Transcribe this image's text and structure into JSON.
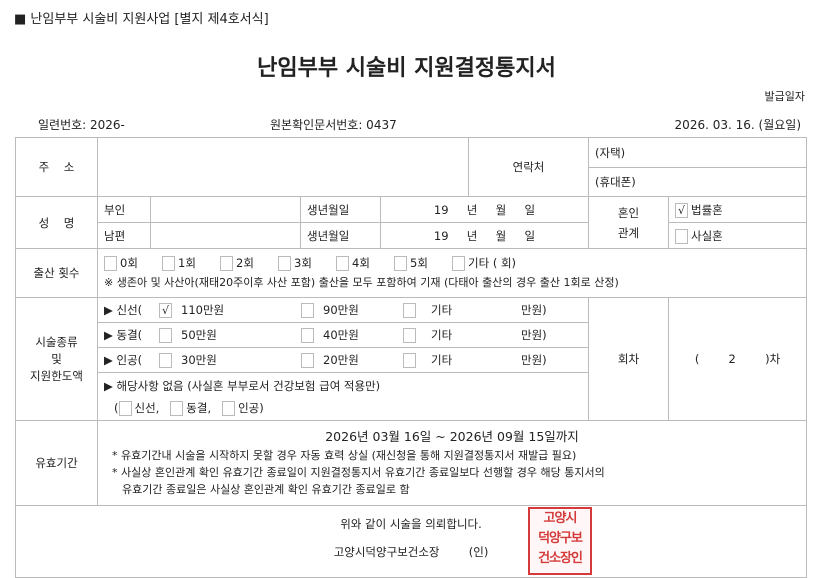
{
  "header": {
    "form_code": "■ 난임부부 시술비 지원사업 [별지 제4호서식]",
    "title": "난임부부 시술비 지원결정통지서",
    "issue_date_label": "발급일자",
    "serial": "일련번호: 2026-",
    "origin_doc": "원본확인문서번호: 0437",
    "issue_date": "2026. 03. 16. (월요일)"
  },
  "address": {
    "label": "주    소",
    "contact_label": "연락처",
    "home": "(자택)",
    "mobile": "(휴대폰)"
  },
  "name": {
    "label": "성    명",
    "wife": "부인",
    "husband": "남편",
    "birth_label": "생년월일",
    "wife_birth": "19     년     월     일",
    "husband_birth": "19     년     월     일",
    "marriage_label": "혼인\n관계",
    "marriage_options": [
      {
        "label": "법률혼",
        "checked": true,
        "mark": "√"
      },
      {
        "label": "사실혼",
        "checked": false,
        "mark": ""
      }
    ]
  },
  "births": {
    "label": "출산 횟수",
    "options": [
      "0회",
      "1회",
      "2회",
      "3회",
      "4회",
      "5회",
      "기타 (          회)"
    ],
    "note": "※ 생존아 및 사산아(재태20주이후 사산 포함) 출산을 모두 포함하여 기재 (다태아 출산의 경우 출산 1회로 산정)"
  },
  "procedure": {
    "label": "시술종류\n및\n지원한도액",
    "rows": [
      {
        "type": "▶ 신선(",
        "mark": "√",
        "a": "110만원",
        "b": "90만원",
        "c": "기타",
        "d": "만원)"
      },
      {
        "type": "▶ 동결(",
        "mark": "",
        "a": "50만원",
        "b": "40만원",
        "c": "기타",
        "d": "만원)"
      },
      {
        "type": "▶ 인공(",
        "mark": "",
        "a": "30만원",
        "b": "20만원",
        "c": "기타",
        "d": "만원)"
      }
    ],
    "none_line": "▶ 해당사항 없음 (사실혼 부부로서 건강보험 급여 적용만)",
    "none_opts": [
      "신선,",
      "동결,",
      "인공)"
    ],
    "round_label": "회차",
    "round_value": "(        2        )차"
  },
  "validity": {
    "label": "유효기간",
    "period": "2026년 03월 16일 ~ 2026년 09월 15일까지",
    "notes": [
      "* 유효기간내 시술을 시작하지 못할 경우 자동 효력 상실 (재신청을 통해 지원결정통지서 재발급 필요)",
      "* 사실상 혼인관계 확인 유효기간 종료일이 지원결정통지서 유효기간 종료일보다 선행할 경우 해당 통지서의",
      "유효기간 종료일은 사실상 혼인관계 확인 유효기간 종료일로 함"
    ]
  },
  "footer": {
    "statement": "위와 같이 시술을 의뢰합니다.",
    "issuer": "고양시덕양구보건소장",
    "seal_mark": "(인)",
    "stamp_text": [
      "고양시",
      "덕양구보",
      "건소장인"
    ]
  },
  "colors": {
    "stamp": "#d43a3a",
    "border": "#bbbbbb"
  }
}
